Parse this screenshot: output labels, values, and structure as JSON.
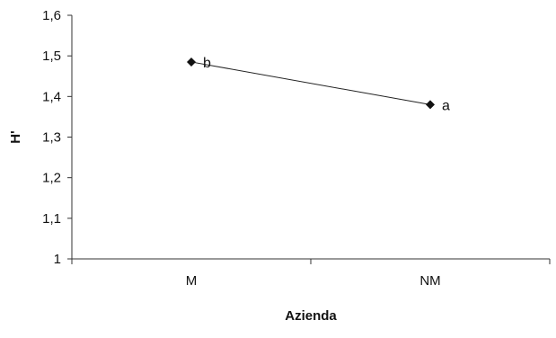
{
  "chart_data": {
    "type": "line",
    "categories": [
      "M",
      "NM"
    ],
    "series": [
      {
        "values": [
          1.485,
          1.38
        ],
        "point_labels": [
          "b",
          "a"
        ]
      }
    ],
    "xlabel": "Azienda",
    "ylabel": "H'",
    "ylim": [
      1,
      1.6
    ],
    "yticks": [
      "1",
      "1,1",
      "1,2",
      "1,3",
      "1,4",
      "1,5",
      "1,6"
    ],
    "grid": false,
    "legend": "none",
    "colors": {
      "line": "#222222",
      "marker": "#111111",
      "axis": "#333333"
    }
  }
}
